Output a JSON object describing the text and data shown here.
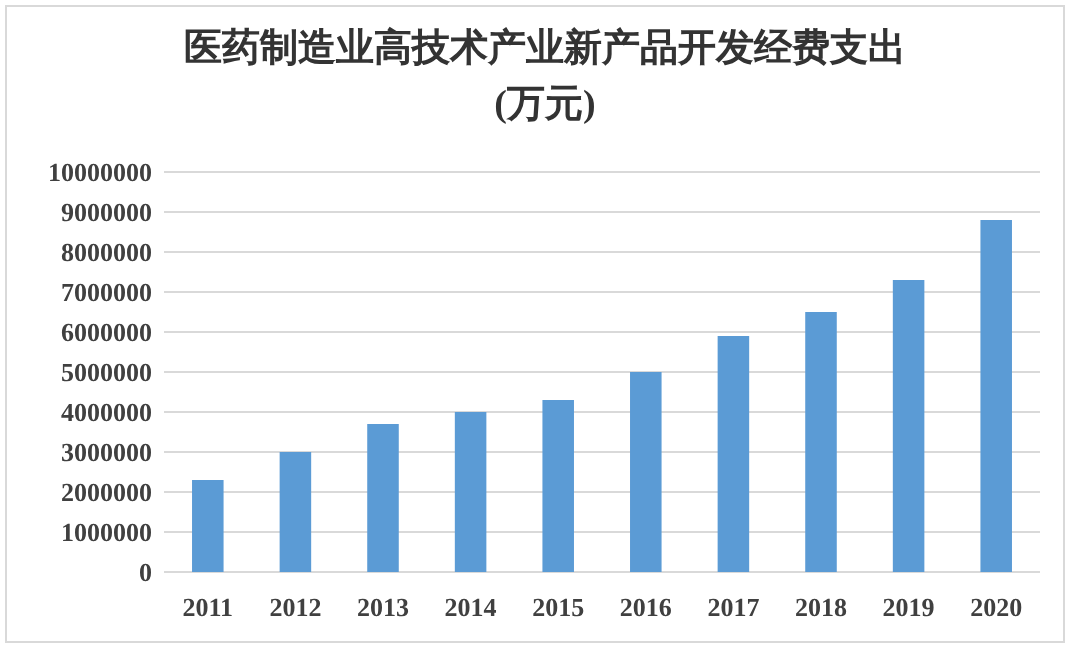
{
  "chart_data": {
    "type": "bar",
    "title": "医药制造业高技术产业新产品开发经费支出\n(万元)",
    "categories": [
      "2011",
      "2012",
      "2013",
      "2014",
      "2015",
      "2016",
      "2017",
      "2018",
      "2019",
      "2020"
    ],
    "values": [
      2300000,
      3000000,
      3700000,
      4000000,
      4300000,
      5000000,
      5900000,
      6500000,
      7300000,
      8800000
    ],
    "color": "#5b9bd5",
    "ylim": [
      0,
      10000000
    ],
    "yticks": [
      0,
      1000000,
      2000000,
      3000000,
      4000000,
      5000000,
      6000000,
      7000000,
      8000000,
      9000000,
      10000000
    ],
    "grid": "y"
  }
}
